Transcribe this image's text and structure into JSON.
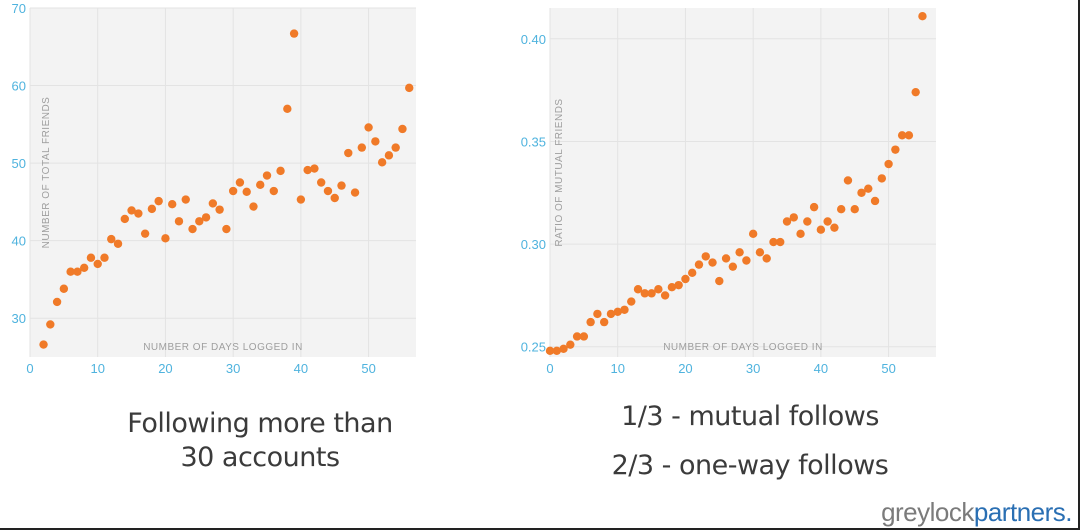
{
  "chart_data": [
    {
      "type": "scatter",
      "xlabel": "NUMBER OF DAYS LOGGED IN",
      "ylabel": "NUMBER OF TOTAL FRIENDS",
      "xlim": [
        0,
        57
      ],
      "ylim": [
        25,
        70
      ],
      "xticks": [
        0,
        10,
        20,
        30,
        40,
        50
      ],
      "yticks": [
        30,
        40,
        50,
        60,
        70
      ],
      "tick_decimals": 0,
      "grid": true,
      "marker_color": "#f07a28",
      "x": [
        2,
        3,
        4,
        5,
        6,
        7,
        8,
        9,
        10,
        11,
        12,
        13,
        14,
        15,
        16,
        17,
        18,
        19,
        20,
        21,
        22,
        23,
        24,
        25,
        26,
        27,
        28,
        29,
        30,
        31,
        32,
        33,
        34,
        35,
        36,
        37,
        38,
        39,
        40,
        41,
        42,
        43,
        44,
        45,
        46,
        47,
        48,
        49,
        50,
        51,
        52,
        53,
        54,
        55,
        56
      ],
      "y": [
        26.6,
        29.2,
        32.1,
        33.8,
        36.0,
        36.0,
        36.5,
        37.8,
        37.0,
        37.8,
        40.2,
        39.6,
        42.8,
        43.9,
        43.5,
        40.9,
        44.1,
        45.1,
        40.3,
        44.7,
        42.5,
        45.3,
        41.5,
        42.5,
        43.0,
        44.8,
        44.0,
        41.5,
        46.4,
        47.5,
        46.3,
        44.4,
        47.2,
        48.4,
        46.4,
        49.0,
        57.0,
        66.7,
        45.3,
        49.1,
        49.3,
        47.5,
        46.4,
        45.5,
        47.1,
        51.3,
        46.2,
        52.0,
        54.6,
        52.8,
        50.1,
        51.0,
        52.0,
        54.4,
        59.7
      ]
    },
    {
      "type": "scatter",
      "xlabel": "NUMBER OF DAYS LOGGED IN",
      "ylabel": "RATIO OF MUTUAL FRIENDS",
      "xlim": [
        0,
        57
      ],
      "ylim": [
        0.245,
        0.415
      ],
      "xticks": [
        0,
        10,
        20,
        30,
        40,
        50
      ],
      "yticks": [
        0.25,
        0.3,
        0.35,
        0.4
      ],
      "tick_decimals": 2,
      "grid": true,
      "marker_color": "#f07a28",
      "x": [
        0,
        1,
        2,
        3,
        4,
        5,
        6,
        7,
        8,
        9,
        10,
        11,
        12,
        13,
        14,
        15,
        16,
        17,
        18,
        19,
        20,
        21,
        22,
        23,
        24,
        25,
        26,
        27,
        28,
        29,
        30,
        31,
        32,
        33,
        34,
        35,
        36,
        37,
        38,
        39,
        40,
        41,
        42,
        43,
        44,
        45,
        46,
        47,
        48,
        49,
        50,
        51,
        52,
        53,
        54,
        55
      ],
      "y": [
        0.248,
        0.248,
        0.249,
        0.251,
        0.255,
        0.255,
        0.262,
        0.266,
        0.262,
        0.266,
        0.267,
        0.268,
        0.272,
        0.278,
        0.276,
        0.276,
        0.278,
        0.275,
        0.279,
        0.28,
        0.283,
        0.286,
        0.29,
        0.294,
        0.291,
        0.282,
        0.293,
        0.289,
        0.296,
        0.292,
        0.305,
        0.296,
        0.293,
        0.301,
        0.301,
        0.311,
        0.313,
        0.305,
        0.311,
        0.318,
        0.307,
        0.311,
        0.308,
        0.317,
        0.331,
        0.317,
        0.325,
        0.327,
        0.321,
        0.332,
        0.339,
        0.346,
        0.353,
        0.353,
        0.374,
        0.411
      ]
    }
  ],
  "captions": {
    "left": [
      "Following more than",
      "30 accounts"
    ],
    "right_1": "1/3 - mutual follows",
    "right_2": "2/3 - one-way follows"
  },
  "logo": {
    "part1": "greylock",
    "part2": "partners.",
    "color1": "#7b7b7b",
    "color2": "#2a6fb3"
  },
  "colors": {
    "axis_text": "#4fb3de",
    "plot_bg": "#f3f3f3",
    "inner_label": "#9e9e9e"
  }
}
